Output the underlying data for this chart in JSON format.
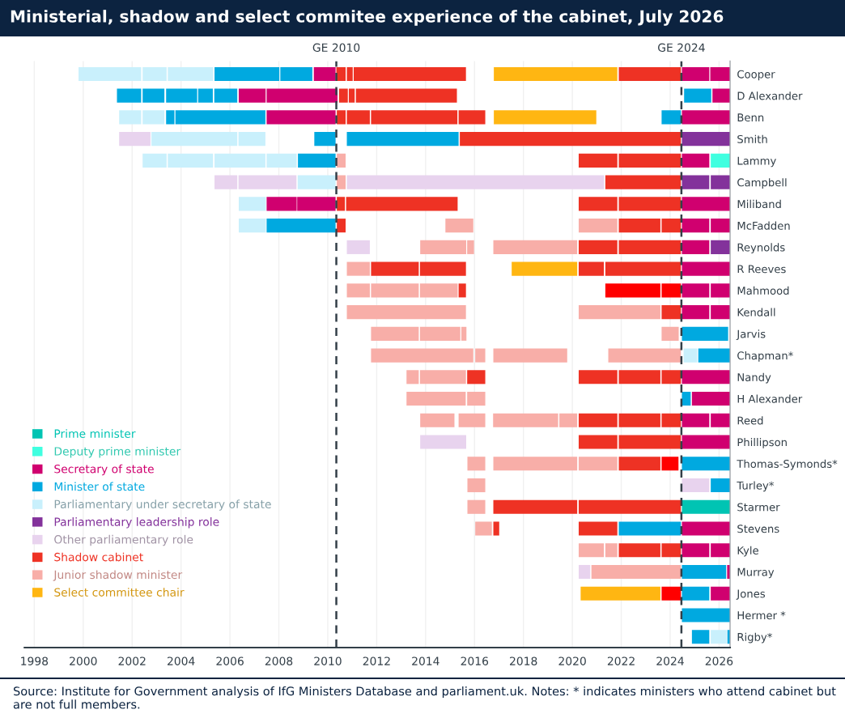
{
  "chart_data": {
    "type": "bar",
    "orientation": "horizontal",
    "title": "Ministerial, shadow and select commitee experience of the cabinet, July 2026",
    "categories": [
      "Cooper",
      "D Alexander",
      "Benn",
      "Smith",
      "Lammy",
      "Campbell",
      "Miliband",
      "McFadden",
      "Reynolds",
      "R Reeves",
      "Mahmood",
      "Kendall",
      "Jarvis",
      "Chapman*",
      "Nandy",
      "H Alexander",
      "Reed",
      "Phillipson",
      "Thomas-Symonds*",
      "Turley*",
      "Starmer",
      "Stevens",
      "Kyle",
      "Murray",
      "Jones",
      "Hermer *",
      "Rigby*"
    ],
    "xlim": [
      1997.6,
      2026.45
    ],
    "xticks": [
      1998,
      2000,
      2002,
      2004,
      2006,
      2008,
      2010,
      2012,
      2014,
      2016,
      2018,
      2020,
      2022,
      2024,
      2026
    ],
    "grid": "x",
    "legend": "bottom left",
    "ref_lines": [
      {
        "axis": "x",
        "value": 2010.35,
        "label": "GE 2010",
        "color": "#333f48",
        "line_style": "dashed"
      },
      {
        "axis": "x",
        "value": 2024.46,
        "label": "GE 2024",
        "color": "#333f48",
        "line_style": "dashed"
      }
    ],
    "annotations": [
      "Source: Institute for Government analysis of IfG Ministers Database and parliament.uk. Notes: * indicates ministers who attend cabinet but are not full members."
    ],
    "series": [
      {
        "name": "Prime minister",
        "color": "#00c4b3",
        "base": [
          null,
          null,
          null,
          null,
          null,
          null,
          null,
          null,
          null,
          null,
          null,
          null,
          null,
          null,
          null,
          null,
          null,
          null,
          null,
          null,
          2024.48,
          null,
          null,
          null,
          null,
          null,
          null
        ],
        "values": [
          null,
          null,
          null,
          null,
          null,
          null,
          null,
          null,
          null,
          null,
          null,
          null,
          null,
          null,
          null,
          null,
          null,
          null,
          null,
          null,
          1.96,
          null,
          null,
          null,
          null,
          null,
          null
        ]
      },
      {
        "name": "Deputy prime minister",
        "color": "#40ffe0",
        "base": [
          null,
          null,
          null,
          null,
          2025.66,
          null,
          null,
          null,
          null,
          null,
          null,
          null,
          null,
          null,
          null,
          null,
          null,
          null,
          null,
          null,
          null,
          null,
          null,
          null,
          null,
          null,
          null
        ],
        "values": [
          null,
          null,
          null,
          null,
          0.78,
          null,
          null,
          null,
          null,
          null,
          null,
          null,
          null,
          null,
          null,
          null,
          null,
          null,
          null,
          null,
          null,
          null,
          null,
          null,
          null,
          null,
          null
        ]
      },
      {
        "name": "Secretary of state",
        "color": "#d0006f",
        "base": [
          2009.43,
          2006.36,
          2007.5,
          null,
          2024.48,
          null,
          2007.5,
          2024.48,
          2024.48,
          2024.48,
          2024.48,
          2024.48,
          null,
          null,
          2024.48,
          2024.89,
          2024.48,
          2024.48,
          null,
          null,
          null,
          2024.48,
          2024.48,
          2026.33,
          2025.66,
          null,
          null
        ],
        "values": [
          0.89,
          1.1,
          2.82,
          null,
          1.12,
          null,
          1.23,
          1.12,
          1.12,
          1.96,
          1.12,
          1.12,
          null,
          null,
          1.96,
          1.55,
          1.12,
          1.96,
          null,
          null,
          null,
          1.96,
          1.12,
          0.11,
          0.78,
          null,
          null
        ]
      },
      {
        "name": "Minister of state",
        "color": "#00a9e0",
        "base": [
          2005.37,
          2001.38,
          2003.39,
          2009.45,
          2008.78,
          null,
          null,
          2007.5,
          null,
          null,
          null,
          null,
          2024.48,
          2025.15,
          null,
          2024.48,
          null,
          null,
          2024.48,
          2025.66,
          null,
          2021.9,
          null,
          2024.48,
          2024.48,
          2024.48,
          2024.89
        ],
        "values": [
          2.65,
          0.99,
          0.34,
          0.87,
          1.54,
          null,
          null,
          2.82,
          null,
          null,
          null,
          null,
          1.89,
          1.29,
          null,
          0.36,
          null,
          null,
          1.96,
          0.78,
          null,
          2.54,
          null,
          1.81,
          1.12,
          1.96,
          0.71
        ]
      },
      {
        "name": "Parliamentary under secretary of state",
        "color": "#c9f0fc",
        "base": [
          1999.81,
          null,
          2001.47,
          2002.79,
          2002.43,
          2008.77,
          2006.36,
          2006.36,
          null,
          null,
          null,
          null,
          null,
          2024.55,
          null,
          null,
          null,
          null,
          null,
          null,
          null,
          null,
          null,
          null,
          null,
          null,
          2025.66
        ],
        "values": [
          2.56,
          null,
          0.9,
          3.51,
          0.98,
          1.55,
          1.11,
          1.11,
          null,
          null,
          null,
          null,
          null,
          0.56,
          null,
          null,
          null,
          null,
          null,
          null,
          null,
          null,
          null,
          null,
          null,
          null,
          0.65
        ]
      },
      {
        "name": "Parliamentary leadership role",
        "color": "#83329b",
        "base": [
          null,
          null,
          null,
          2024.48,
          null,
          2024.48,
          null,
          null,
          2025.66,
          null,
          null,
          null,
          null,
          null,
          null,
          null,
          null,
          null,
          null,
          null,
          null,
          null,
          null,
          null,
          null,
          null,
          null
        ],
        "values": [
          null,
          null,
          null,
          1.96,
          null,
          1.12,
          null,
          null,
          0.78,
          null,
          null,
          null,
          null,
          null,
          null,
          null,
          null,
          null,
          null,
          null,
          null,
          null,
          null,
          null,
          null,
          null,
          null
        ]
      },
      {
        "name": "Other parliamentary role",
        "color": "#e8d3ee",
        "base": [
          null,
          null,
          null,
          2001.47,
          null,
          2005.37,
          null,
          null,
          2010.78,
          null,
          null,
          null,
          null,
          null,
          null,
          null,
          null,
          2013.78,
          null,
          2024.48,
          null,
          null,
          null,
          2020.26,
          null,
          null,
          null
        ],
        "values": [
          null,
          null,
          null,
          1.28,
          null,
          0.93,
          null,
          null,
          0.94,
          null,
          null,
          null,
          null,
          null,
          null,
          null,
          null,
          1.88,
          null,
          1.12,
          null,
          null,
          null,
          0.47,
          null,
          null,
          null
        ]
      },
      {
        "name": "Shadow cabinet",
        "color": "#ee3224",
        "base": [
          2010.35,
          2010.46,
          2010.37,
          2015.4,
          2020.26,
          2021.35,
          2010.37,
          2010.37,
          2020.26,
          2011.77,
          2015.35,
          2023.65,
          null,
          null,
          2015.7,
          null,
          2020.26,
          2020.26,
          2021.9,
          null,
          2016.77,
          2016.77,
          2021.9,
          null,
          null,
          null,
          null
        ],
        "values": [
          0.38,
          0.36,
          0.36,
          9.04,
          1.58,
          3.09,
          0.33,
          0.36,
          1.58,
          1.95,
          0.3,
          0.79,
          null,
          null,
          0.74,
          null,
          1.58,
          1.58,
          1.7,
          null,
          3.43,
          0.24,
          1.7,
          null,
          null,
          null,
          null
        ]
      },
      {
        "name": "Junior shadow minister",
        "color": "#f8aea8",
        "base": [
          null,
          null,
          null,
          null,
          2010.37,
          2010.37,
          null,
          2014.81,
          2013.78,
          2010.78,
          2010.78,
          2010.78,
          2011.77,
          2011.77,
          2013.22,
          2013.22,
          2013.78,
          null,
          2015.71,
          2015.71,
          2015.71,
          2016.03,
          2020.26,
          2020.78,
          null,
          null,
          null
        ],
        "values": [
          null,
          null,
          null,
          null,
          0.36,
          0.36,
          null,
          1.14,
          1.88,
          0.94,
          0.94,
          4.87,
          1.95,
          4.18,
          0.5,
          2.42,
          1.4,
          null,
          0.73,
          0.73,
          0.73,
          0.68,
          1.03,
          3.66,
          null,
          null,
          null
        ]
      },
      {
        "name": "Select committee chair",
        "color": "#ffb612",
        "base": [
          2016.79,
          null,
          2016.79,
          null,
          null,
          null,
          null,
          null,
          null,
          2017.52,
          null,
          null,
          null,
          null,
          null,
          null,
          null,
          null,
          null,
          null,
          null,
          null,
          null,
          null,
          2020.34,
          null,
          null
        ],
        "values": [
          5.05,
          null,
          4.19,
          null,
          null,
          null,
          null,
          null,
          null,
          2.68,
          null,
          null,
          null,
          null,
          null,
          null,
          null,
          null,
          null,
          null,
          null,
          null,
          null,
          null,
          3.26,
          null,
          null
        ]
      },
      {
        "color": "#d0006f",
        "base": [
          2024.48,
          2007.5,
          2024.48,
          null,
          null,
          null,
          2008.75,
          2025.66,
          null,
          null,
          2025.66,
          2025.66,
          null,
          null,
          null,
          null,
          2025.66,
          null,
          null,
          null,
          null,
          null,
          2025.66,
          null,
          null,
          null,
          null
        ],
        "values": [
          1.12,
          2.9,
          1.96,
          null,
          null,
          null,
          1.57,
          0.78,
          null,
          null,
          0.78,
          0.78,
          null,
          null,
          null,
          null,
          0.78,
          null,
          null,
          null,
          null,
          null,
          0.78,
          null,
          null,
          null,
          null
        ]
      },
      {
        "color": "#d0006f",
        "base": [
          2025.64,
          2025.73,
          null,
          null,
          null,
          null,
          2024.48,
          null,
          null,
          null,
          null,
          null,
          null,
          null,
          null,
          null,
          null,
          null,
          null,
          null,
          null,
          null,
          null,
          null,
          null,
          null,
          null
        ],
        "values": [
          0.8,
          0.71,
          null,
          null,
          null,
          null,
          1.96,
          null,
          null,
          null,
          null,
          null,
          null,
          null,
          null,
          null,
          null,
          null,
          null,
          null,
          null,
          null,
          null,
          null,
          null,
          null,
          null
        ]
      },
      {
        "color": "#00a9e0",
        "base": [
          2008.06,
          2002.43,
          2003.77,
          2010.78,
          null,
          null,
          null,
          null,
          null,
          null,
          null,
          null,
          null,
          null,
          null,
          null,
          null,
          null,
          null,
          null,
          null,
          null,
          null,
          null,
          null,
          null,
          2026.34
        ],
        "values": [
          1.31,
          0.89,
          3.68,
          4.57,
          null,
          null,
          null,
          null,
          null,
          null,
          null,
          null,
          null,
          null,
          null,
          null,
          null,
          null,
          null,
          null,
          null,
          null,
          null,
          null,
          null,
          null,
          0.1
        ]
      },
      {
        "color": "#00a9e0",
        "base": [
          null,
          2003.39,
          2023.65,
          null,
          null,
          null,
          null,
          null,
          null,
          null,
          null,
          null,
          null,
          null,
          null,
          null,
          null,
          null,
          null,
          null,
          null,
          null,
          null,
          null,
          null,
          null,
          null
        ],
        "values": [
          null,
          1.27,
          0.79,
          null,
          null,
          null,
          null,
          null,
          null,
          null,
          null,
          null,
          null,
          null,
          null,
          null,
          null,
          null,
          null,
          null,
          null,
          null,
          null,
          null,
          null,
          null,
          null
        ]
      },
      {
        "color": "#00a9e0",
        "base": [
          null,
          2004.7,
          null,
          null,
          null,
          null,
          null,
          null,
          null,
          null,
          null,
          null,
          null,
          null,
          null,
          null,
          null,
          null,
          null,
          null,
          null,
          null,
          null,
          null,
          null,
          null,
          null
        ],
        "values": [
          null,
          0.6,
          null,
          null,
          null,
          null,
          null,
          null,
          null,
          null,
          null,
          null,
          null,
          null,
          null,
          null,
          null,
          null,
          null,
          null,
          null,
          null,
          null,
          null,
          null,
          null,
          null
        ]
      },
      {
        "color": "#00a9e0",
        "base": [
          null,
          2005.36,
          null,
          null,
          null,
          null,
          null,
          null,
          null,
          null,
          null,
          null,
          null,
          null,
          null,
          null,
          null,
          null,
          null,
          null,
          null,
          null,
          null,
          null,
          null,
          null,
          null
        ],
        "values": [
          null,
          0.94,
          null,
          null,
          null,
          null,
          null,
          null,
          null,
          null,
          null,
          null,
          null,
          null,
          null,
          null,
          null,
          null,
          null,
          null,
          null,
          null,
          null,
          null,
          null,
          null,
          null
        ]
      },
      {
        "color": "#00a9e0",
        "base": [
          null,
          2024.57,
          null,
          null,
          null,
          null,
          null,
          null,
          null,
          null,
          null,
          null,
          null,
          null,
          null,
          null,
          null,
          null,
          null,
          null,
          null,
          null,
          null,
          null,
          null,
          null,
          null
        ],
        "values": [
          null,
          1.11,
          null,
          null,
          null,
          null,
          null,
          null,
          null,
          null,
          null,
          null,
          null,
          null,
          null,
          null,
          null,
          null,
          null,
          null,
          null,
          null,
          null,
          null,
          null,
          null,
          null
        ]
      },
      {
        "color": "#c9f0fc",
        "base": [
          2002.43,
          null,
          2002.43,
          2006.35,
          2003.46,
          null,
          null,
          null,
          null,
          null,
          null,
          null,
          null,
          null,
          null,
          null,
          null,
          null,
          null,
          null,
          null,
          null,
          null,
          null,
          null,
          null,
          null
        ],
        "values": [
          0.98,
          null,
          0.89,
          1.1,
          1.85,
          null,
          null,
          null,
          null,
          null,
          null,
          null,
          null,
          null,
          null,
          null,
          null,
          null,
          null,
          null,
          null,
          null,
          null,
          null,
          null,
          null,
          null
        ]
      },
      {
        "color": "#c9f0fc",
        "base": [
          2003.46,
          null,
          null,
          null,
          2005.37,
          null,
          null,
          null,
          null,
          null,
          null,
          null,
          null,
          null,
          null,
          null,
          null,
          null,
          null,
          null,
          null,
          null,
          null,
          null,
          null,
          null,
          null
        ],
        "values": [
          1.86,
          null,
          null,
          null,
          2.08,
          null,
          null,
          null,
          null,
          null,
          null,
          null,
          null,
          null,
          null,
          null,
          null,
          null,
          null,
          null,
          null,
          null,
          null,
          null,
          null,
          null,
          null
        ]
      },
      {
        "color": "#c9f0fc",
        "base": [
          null,
          null,
          null,
          null,
          2007.5,
          null,
          null,
          null,
          null,
          null,
          null,
          null,
          null,
          null,
          null,
          null,
          null,
          null,
          null,
          null,
          null,
          null,
          null,
          null,
          null,
          null,
          null
        ],
        "values": [
          null,
          null,
          null,
          null,
          1.23,
          null,
          null,
          null,
          null,
          null,
          null,
          null,
          null,
          null,
          null,
          null,
          null,
          null,
          null,
          null,
          null,
          null,
          null,
          null,
          null,
          null,
          null
        ]
      },
      {
        "color": "#83329b",
        "base": [
          null,
          null,
          null,
          null,
          null,
          2025.66,
          null,
          null,
          null,
          null,
          null,
          null,
          null,
          null,
          null,
          null,
          null,
          null,
          null,
          null,
          null,
          null,
          null,
          null,
          null,
          null,
          null
        ],
        "values": [
          null,
          null,
          null,
          null,
          null,
          0.78,
          null,
          null,
          null,
          null,
          null,
          null,
          null,
          null,
          null,
          null,
          null,
          null,
          null,
          null,
          null,
          null,
          null,
          null,
          null,
          null,
          null
        ]
      },
      {
        "color": "#e8d3ee",
        "base": [
          null,
          null,
          null,
          null,
          null,
          2006.35,
          null,
          null,
          null,
          null,
          null,
          null,
          null,
          null,
          null,
          null,
          null,
          null,
          null,
          null,
          null,
          null,
          null,
          null,
          null,
          null,
          null
        ],
        "values": [
          null,
          null,
          null,
          null,
          null,
          2.37,
          null,
          null,
          null,
          null,
          null,
          null,
          null,
          null,
          null,
          null,
          null,
          null,
          null,
          null,
          null,
          null,
          null,
          null,
          null,
          null,
          null
        ]
      },
      {
        "color": "#e8d3ee",
        "base": [
          null,
          null,
          null,
          null,
          null,
          2010.78,
          null,
          null,
          null,
          null,
          null,
          null,
          null,
          null,
          null,
          null,
          null,
          null,
          null,
          null,
          null,
          null,
          null,
          null,
          null,
          null,
          null
        ],
        "values": [
          null,
          null,
          null,
          null,
          null,
          10.52,
          null,
          null,
          null,
          null,
          null,
          null,
          null,
          null,
          null,
          null,
          null,
          null,
          null,
          null,
          null,
          null,
          null,
          null,
          null,
          null,
          null
        ]
      },
      {
        "color": "#ee3224",
        "base": [
          2010.78,
          2010.86,
          2010.78,
          null,
          2021.9,
          null,
          2010.75,
          2021.9,
          2021.9,
          2013.77,
          null,
          null,
          null,
          null,
          2020.26,
          null,
          2021.9,
          2021.9,
          null,
          null,
          2020.26,
          2020.26,
          2023.65,
          null,
          null,
          null,
          null
        ],
        "values": [
          0.24,
          0.24,
          0.94,
          null,
          2.54,
          null,
          4.56,
          1.7,
          2.54,
          1.88,
          null,
          null,
          null,
          null,
          1.58,
          null,
          1.7,
          2.54,
          null,
          null,
          4.18,
          1.58,
          0.79,
          null,
          null,
          null,
          null
        ]
      },
      {
        "color": "#ee3224",
        "base": [
          2011.06,
          2011.15,
          2011.77,
          null,
          null,
          null,
          2020.26,
          2023.65,
          null,
          2020.26,
          null,
          null,
          null,
          null,
          2021.9,
          null,
          2023.65,
          null,
          null,
          null,
          null,
          null,
          null,
          null,
          null,
          null,
          null
        ],
        "values": [
          4.59,
          4.13,
          3.53,
          null,
          null,
          null,
          1.58,
          0.79,
          null,
          1.03,
          null,
          null,
          null,
          null,
          1.7,
          null,
          0.79,
          null,
          null,
          null,
          null,
          null,
          null,
          null,
          null,
          null,
          null
        ]
      },
      {
        "color": "#ee3224",
        "base": [
          2021.9,
          null,
          2015.35,
          null,
          null,
          null,
          2021.9,
          null,
          null,
          2021.35,
          null,
          null,
          null,
          null,
          2023.65,
          null,
          null,
          null,
          null,
          null,
          null,
          null,
          null,
          null,
          null,
          null,
          null
        ],
        "values": [
          2.54,
          null,
          1.09,
          null,
          null,
          null,
          2.54,
          null,
          null,
          3.09,
          null,
          null,
          null,
          null,
          0.79,
          null,
          null,
          null,
          null,
          null,
          null,
          null,
          null,
          null,
          null,
          null,
          null
        ]
      },
      {
        "color": "#ff0000",
        "base": [
          null,
          null,
          null,
          null,
          null,
          null,
          null,
          null,
          null,
          null,
          2021.35,
          null,
          null,
          null,
          null,
          null,
          null,
          null,
          2023.65,
          null,
          null,
          null,
          null,
          null,
          2023.65,
          null,
          null
        ],
        "values": [
          null,
          null,
          null,
          null,
          null,
          null,
          null,
          null,
          null,
          null,
          2.25,
          null,
          null,
          null,
          null,
          null,
          null,
          null,
          0.69,
          null,
          null,
          null,
          null,
          null,
          0.79,
          null,
          null
        ]
      },
      {
        "color": "#ff0000",
        "base": [
          null,
          null,
          null,
          null,
          null,
          null,
          null,
          null,
          null,
          null,
          2023.65,
          null,
          null,
          null,
          null,
          null,
          null,
          null,
          null,
          null,
          null,
          null,
          null,
          null,
          null,
          null,
          null
        ],
        "values": [
          null,
          null,
          null,
          null,
          null,
          null,
          null,
          null,
          null,
          null,
          0.79,
          null,
          null,
          null,
          null,
          null,
          null,
          null,
          null,
          null,
          null,
          null,
          null,
          null,
          null,
          null,
          null
        ]
      },
      {
        "color": "#f8aea8",
        "base": [
          null,
          null,
          null,
          null,
          null,
          null,
          null,
          2020.26,
          2015.7,
          null,
          2011.77,
          2020.26,
          2013.77,
          2016.03,
          2013.77,
          2015.7,
          2015.35,
          null,
          2016.77,
          null,
          null,
          null,
          2021.35,
          null,
          null,
          null,
          null
        ],
        "values": [
          null,
          null,
          null,
          null,
          null,
          null,
          null,
          1.58,
          0.28,
          null,
          1.95,
          3.34,
          1.65,
          0.41,
          1.88,
          0.74,
          1.09,
          null,
          3.43,
          null,
          null,
          null,
          0.49,
          null,
          null,
          null,
          null
        ]
      },
      {
        "color": "#f8aea8",
        "base": [
          null,
          null,
          null,
          null,
          null,
          null,
          null,
          null,
          2016.77,
          null,
          2013.77,
          null,
          2015.46,
          2016.77,
          null,
          null,
          2016.76,
          null,
          2020.26,
          null,
          null,
          null,
          null,
          null,
          null,
          null,
          null
        ],
        "values": [
          null,
          null,
          null,
          null,
          null,
          null,
          null,
          null,
          3.43,
          null,
          1.54,
          null,
          0.21,
          3.02,
          null,
          null,
          2.66,
          null,
          1.58,
          null,
          null,
          null,
          null,
          null,
          null,
          null,
          null
        ]
      },
      {
        "color": "#f8aea8",
        "base": [
          null,
          null,
          null,
          null,
          null,
          null,
          null,
          null,
          null,
          null,
          null,
          null,
          2023.65,
          2021.47,
          null,
          null,
          2019.47,
          null,
          null,
          null,
          null,
          null,
          null,
          null,
          null,
          null,
          null
        ],
        "values": [
          null,
          null,
          null,
          null,
          null,
          null,
          null,
          null,
          null,
          null,
          null,
          null,
          0.7,
          2.97,
          null,
          null,
          0.73,
          null,
          null,
          null,
          null,
          null,
          null,
          null,
          null,
          null,
          null
        ]
      }
    ]
  }
}
